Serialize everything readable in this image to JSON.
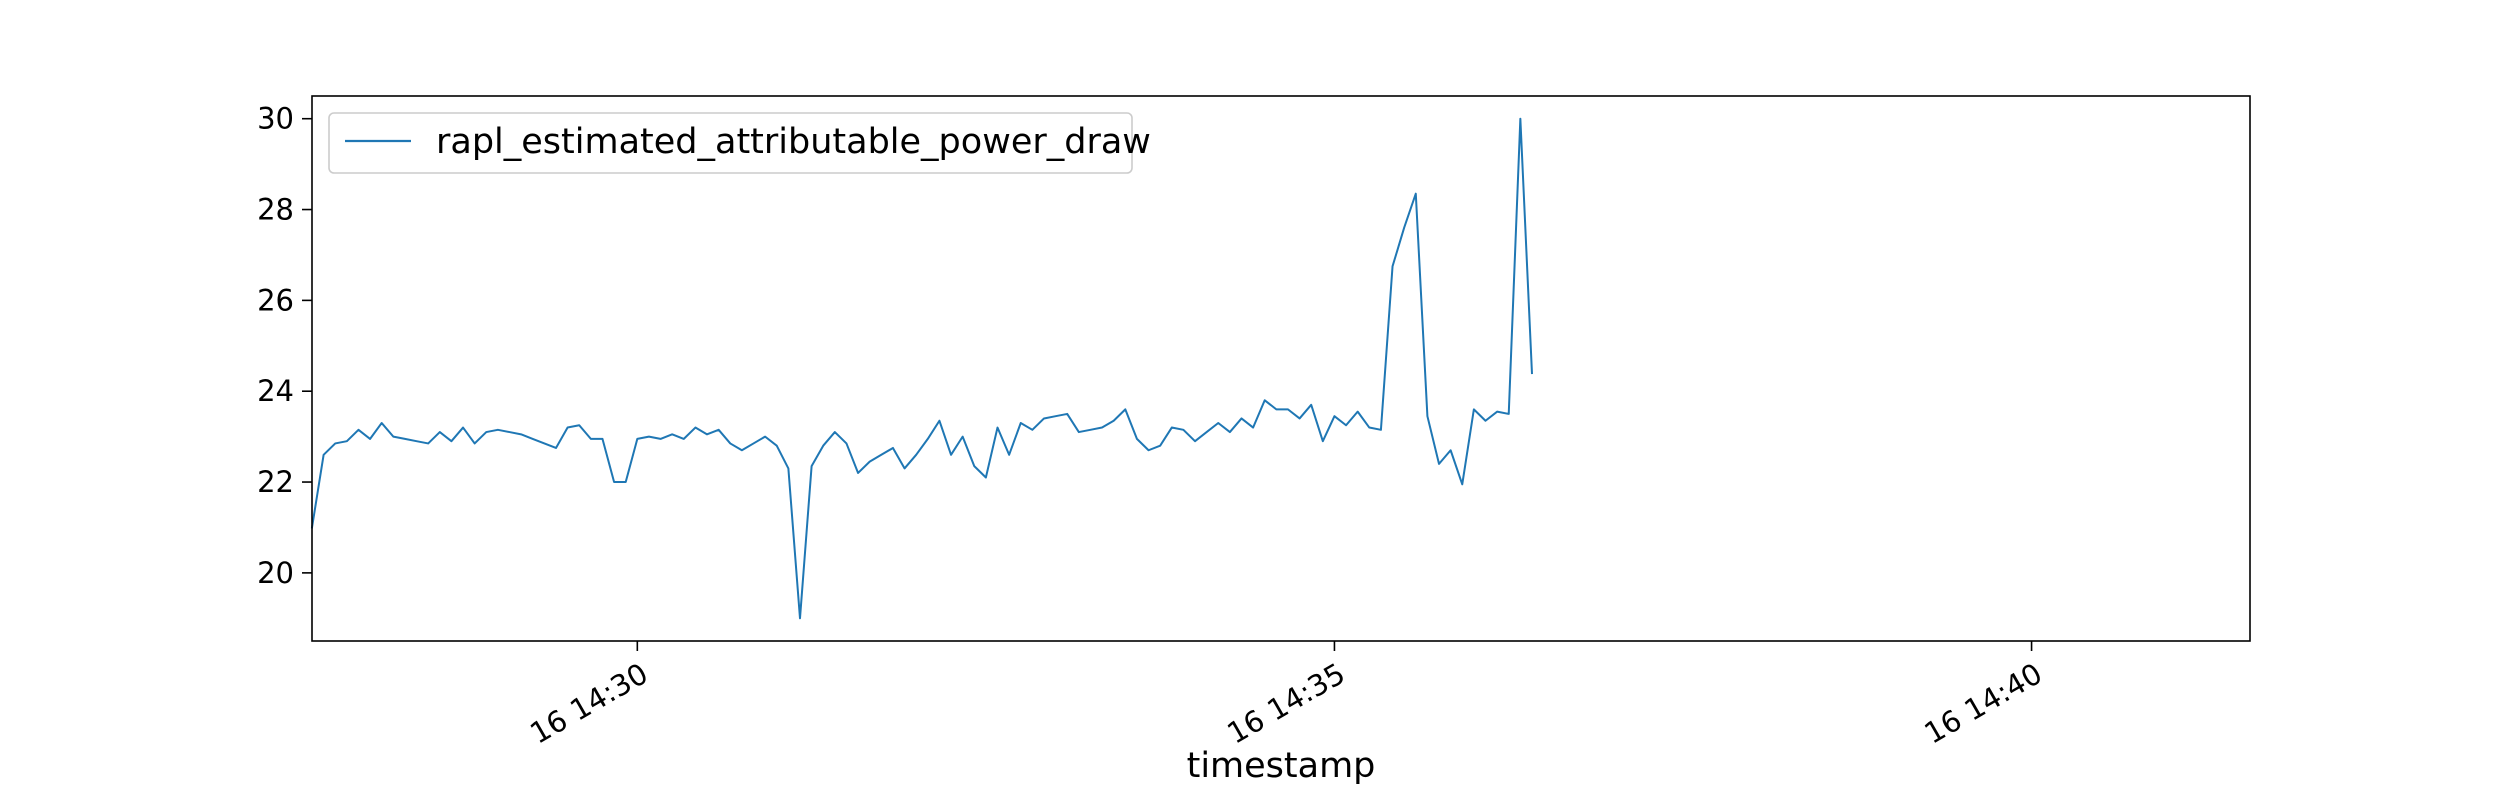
{
  "chart_data": {
    "type": "line",
    "title": "",
    "xlabel": "timestamp",
    "ylabel": "",
    "legend_position": "upper-left",
    "grid": false,
    "x_start": "14:27:40",
    "x_step_seconds": 5,
    "xlim": [
      "14:27:40",
      "14:41:34"
    ],
    "x_ticks": [
      {
        "time": "14:30:00",
        "label": "16 14:30"
      },
      {
        "time": "14:35:00",
        "label": "16 14:35"
      },
      {
        "time": "14:40:00",
        "label": "16 14:40"
      }
    ],
    "ylim": [
      18.5,
      30.5
    ],
    "y_ticks": [
      20,
      22,
      24,
      26,
      28,
      30
    ],
    "series": [
      {
        "name": "rapl_estimated_attributable_power_draw",
        "color": "#1f77b4",
        "values": [
          21.0,
          22.6,
          22.85,
          22.9,
          23.15,
          22.95,
          23.3,
          23.0,
          22.95,
          22.9,
          22.85,
          23.1,
          22.9,
          23.2,
          22.85,
          23.1,
          23.15,
          23.1,
          23.05,
          22.95,
          22.85,
          22.75,
          23.2,
          23.25,
          22.95,
          22.95,
          22.0,
          22.0,
          22.95,
          23.0,
          22.95,
          23.05,
          22.95,
          23.2,
          23.05,
          23.15,
          22.85,
          22.7,
          22.85,
          23.0,
          22.8,
          22.3,
          19.0,
          22.35,
          22.8,
          23.1,
          22.85,
          22.2,
          22.45,
          22.6,
          22.75,
          22.3,
          22.6,
          22.95,
          23.35,
          22.6,
          23.0,
          22.35,
          22.1,
          23.2,
          22.6,
          23.3,
          23.15,
          23.4,
          23.45,
          23.5,
          23.1,
          23.15,
          23.2,
          23.35,
          23.6,
          22.95,
          22.7,
          22.8,
          23.2,
          23.15,
          22.9,
          23.1,
          23.3,
          23.1,
          23.4,
          23.2,
          23.8,
          23.6,
          23.6,
          23.4,
          23.7,
          22.9,
          23.45,
          23.25,
          23.55,
          23.2,
          23.15,
          26.75,
          27.6,
          28.35,
          23.45,
          22.4,
          22.7,
          21.95,
          23.6,
          23.35,
          23.55,
          23.5,
          30.0,
          24.4
        ]
      }
    ]
  }
}
